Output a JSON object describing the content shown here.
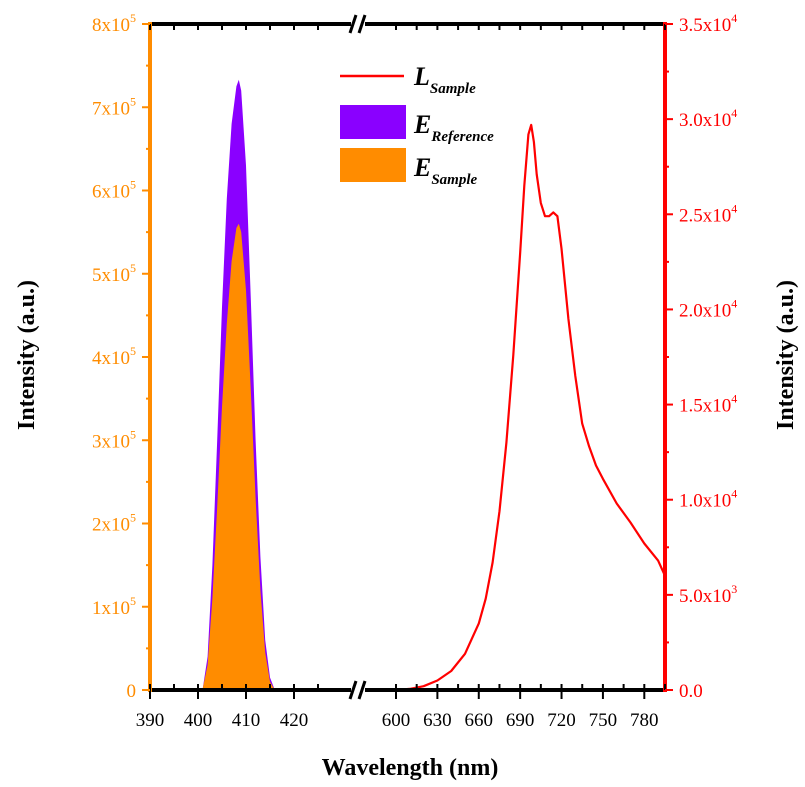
{
  "chart_data": {
    "type": "area",
    "xlabel": "Wavelength (nm)",
    "ylabel_left": "Intensity (a.u.)",
    "ylabel_right": "Intensity (a.u.)",
    "x_axis_broken": true,
    "x_segments": [
      {
        "range": [
          390,
          425
        ],
        "ticks": [
          "390",
          "400",
          "410",
          "420"
        ]
      },
      {
        "range": [
          600,
          795
        ],
        "ticks": [
          "600",
          "630",
          "660",
          "690",
          "720",
          "750",
          "780"
        ]
      }
    ],
    "y_left": {
      "range": [
        0,
        800000
      ],
      "color": "#FF8C00",
      "tick_values": [
        0,
        100000,
        200000,
        300000,
        400000,
        500000,
        600000,
        700000,
        800000
      ],
      "tick_labels": [
        {
          "m": "0",
          "e": ""
        },
        {
          "m": "1x10",
          "e": "5"
        },
        {
          "m": "2x10",
          "e": "5"
        },
        {
          "m": "3x10",
          "e": "5"
        },
        {
          "m": "4x10",
          "e": "5"
        },
        {
          "m": "5x10",
          "e": "5"
        },
        {
          "m": "6x10",
          "e": "5"
        },
        {
          "m": "7x10",
          "e": "5"
        },
        {
          "m": "8x10",
          "e": "5"
        }
      ]
    },
    "y_right": {
      "range": [
        0,
        35000
      ],
      "color": "#FF0000",
      "tick_values": [
        0,
        5000,
        10000,
        15000,
        20000,
        25000,
        30000,
        35000
      ],
      "tick_labels": [
        {
          "m": "0.0",
          "e": ""
        },
        {
          "m": "5.0x10",
          "e": "3"
        },
        {
          "m": "1.0x10",
          "e": "4"
        },
        {
          "m": "1.5x10",
          "e": "4"
        },
        {
          "m": "2.0x10",
          "e": "4"
        },
        {
          "m": "2.5x10",
          "e": "4"
        },
        {
          "m": "3.0x10",
          "e": "4"
        },
        {
          "m": "3.5x10",
          "e": "4"
        }
      ]
    },
    "legend_position": "top-center",
    "series": [
      {
        "name_main": "L",
        "name_sub": "Sample",
        "kind": "line",
        "axis": "right",
        "color": "#FF0000",
        "x": [
          600,
          610,
          620,
          630,
          640,
          650,
          660,
          665,
          670,
          675,
          680,
          685,
          690,
          693,
          696,
          698,
          700,
          702,
          705,
          708,
          711,
          714,
          717,
          720,
          725,
          730,
          735,
          740,
          745,
          750,
          760,
          770,
          780,
          790,
          795
        ],
        "y": [
          0,
          60,
          200,
          500,
          1000,
          1900,
          3500,
          4800,
          6700,
          9400,
          13000,
          17600,
          23000,
          26500,
          29200,
          29700,
          28800,
          27100,
          25600,
          24900,
          24900,
          25100,
          24900,
          23200,
          19500,
          16500,
          14000,
          12800,
          11800,
          11100,
          9800,
          8800,
          7700,
          6800,
          6000
        ]
      },
      {
        "name_main": "E",
        "name_sub": "Reference",
        "kind": "area",
        "axis": "left",
        "color": "#8A00FF",
        "x": [
          390,
          396,
          401,
          402,
          403,
          404,
          405,
          406,
          407,
          408,
          408.5,
          409,
          410,
          411,
          412,
          413,
          414,
          415,
          416,
          422
        ],
        "y": [
          0,
          0,
          2000,
          40000,
          150000,
          300000,
          460000,
          590000,
          680000,
          725000,
          733000,
          720000,
          630000,
          470000,
          300000,
          160000,
          60000,
          15000,
          0,
          0
        ]
      },
      {
        "name_main": "E",
        "name_sub": "Sample",
        "kind": "area",
        "axis": "left",
        "color": "#FF8C00",
        "x": [
          390,
          396,
          401,
          402,
          403,
          404,
          405,
          406,
          407,
          408,
          408.5,
          409,
          410,
          411,
          412,
          413,
          414,
          415,
          416,
          422
        ],
        "y": [
          0,
          0,
          2000,
          30000,
          110000,
          220000,
          340000,
          440000,
          515000,
          555000,
          560000,
          550000,
          480000,
          360000,
          230000,
          120000,
          45000,
          10000,
          0,
          0
        ]
      }
    ]
  }
}
